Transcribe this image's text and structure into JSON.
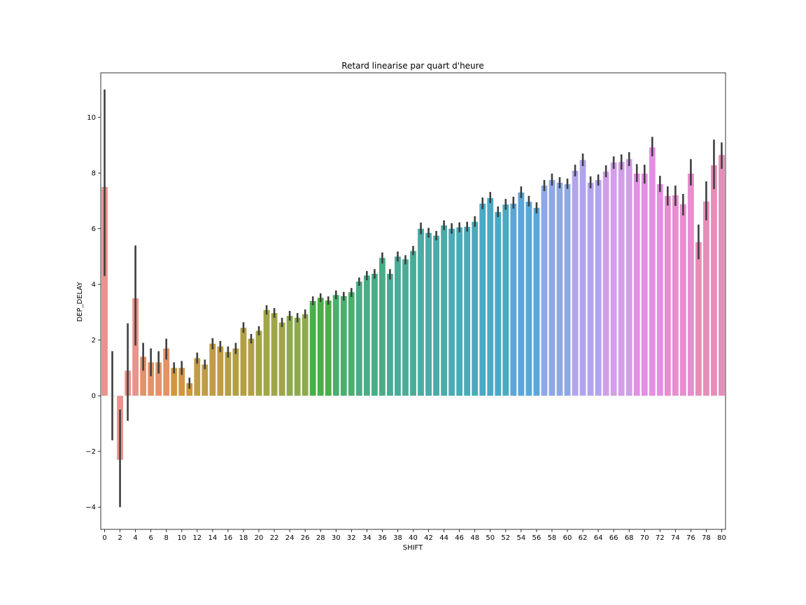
{
  "chart_data": {
    "type": "bar",
    "title": "Retard linearise par quart d'heure",
    "xlabel": "SHIFT",
    "ylabel": "DEP_DELAY",
    "ylim": [
      -4.8,
      11.6
    ],
    "yticks": [
      -4,
      -2,
      0,
      2,
      4,
      6,
      8,
      10
    ],
    "categories": [
      0,
      1,
      2,
      3,
      4,
      5,
      6,
      7,
      8,
      9,
      10,
      11,
      12,
      13,
      14,
      15,
      16,
      17,
      18,
      19,
      20,
      21,
      22,
      23,
      24,
      25,
      26,
      27,
      28,
      29,
      30,
      31,
      32,
      33,
      34,
      35,
      36,
      37,
      38,
      39,
      40,
      41,
      42,
      43,
      44,
      45,
      46,
      47,
      48,
      49,
      50,
      51,
      52,
      53,
      54,
      55,
      56,
      57,
      58,
      59,
      60,
      61,
      62,
      63,
      64,
      65,
      66,
      67,
      68,
      69,
      70,
      71,
      72,
      73,
      74,
      75,
      76,
      77,
      78,
      79,
      80
    ],
    "xtick_labels": [
      "0",
      "2",
      "4",
      "6",
      "8",
      "10",
      "12",
      "14",
      "16",
      "18",
      "20",
      "22",
      "24",
      "26",
      "28",
      "30",
      "32",
      "34",
      "36",
      "38",
      "40",
      "42",
      "44",
      "46",
      "48",
      "50",
      "52",
      "54",
      "56",
      "58",
      "60",
      "62",
      "64",
      "66",
      "68",
      "70",
      "72",
      "74",
      "76",
      "78",
      "80"
    ],
    "values": [
      7.5,
      0.0,
      -2.3,
      0.9,
      3.5,
      1.4,
      1.2,
      1.2,
      1.7,
      1.0,
      1.0,
      0.45,
      1.35,
      1.12,
      1.87,
      1.77,
      1.57,
      1.7,
      2.44,
      2.05,
      2.33,
      3.08,
      2.97,
      2.63,
      2.87,
      2.8,
      2.93,
      3.4,
      3.52,
      3.42,
      3.62,
      3.58,
      3.72,
      4.1,
      4.32,
      4.38,
      4.95,
      4.38,
      5.0,
      4.9,
      5.2,
      6.0,
      5.85,
      5.75,
      6.12,
      6.0,
      6.05,
      6.07,
      6.25,
      6.9,
      7.1,
      6.6,
      6.87,
      6.9,
      7.3,
      6.97,
      6.75,
      7.55,
      7.75,
      7.65,
      7.6,
      8.08,
      8.47,
      7.65,
      7.75,
      8.05,
      8.38,
      8.4,
      8.5,
      7.98,
      7.98,
      8.92,
      7.6,
      7.18,
      7.2,
      6.88,
      7.98,
      5.52,
      6.98,
      8.28,
      8.65
    ],
    "errors": [
      [
        4.3,
        11.0
      ],
      [
        -1.6,
        1.6
      ],
      [
        -4.0,
        -0.5
      ],
      [
        -0.9,
        2.6
      ],
      [
        1.8,
        5.4
      ],
      [
        0.9,
        1.9
      ],
      [
        0.7,
        1.7
      ],
      [
        0.8,
        1.6
      ],
      [
        1.3,
        2.05
      ],
      [
        0.8,
        1.2
      ],
      [
        0.75,
        1.25
      ],
      [
        0.25,
        0.65
      ],
      [
        1.15,
        1.55
      ],
      [
        0.95,
        1.3
      ],
      [
        1.67,
        2.07
      ],
      [
        1.57,
        1.97
      ],
      [
        1.37,
        1.77
      ],
      [
        1.5,
        1.9
      ],
      [
        2.26,
        2.64
      ],
      [
        1.88,
        2.22
      ],
      [
        2.17,
        2.5
      ],
      [
        2.92,
        3.25
      ],
      [
        2.8,
        3.15
      ],
      [
        2.47,
        2.8
      ],
      [
        2.7,
        3.05
      ],
      [
        2.63,
        2.97
      ],
      [
        2.78,
        3.1
      ],
      [
        3.25,
        3.57
      ],
      [
        3.37,
        3.68
      ],
      [
        3.27,
        3.57
      ],
      [
        3.47,
        3.78
      ],
      [
        3.42,
        3.73
      ],
      [
        3.55,
        3.87
      ],
      [
        3.95,
        4.25
      ],
      [
        4.15,
        4.48
      ],
      [
        4.2,
        4.55
      ],
      [
        4.75,
        5.15
      ],
      [
        4.18,
        4.55
      ],
      [
        4.82,
        5.18
      ],
      [
        4.72,
        5.05
      ],
      [
        5.05,
        5.38
      ],
      [
        5.8,
        6.22
      ],
      [
        5.68,
        6.03
      ],
      [
        5.58,
        5.92
      ],
      [
        5.95,
        6.3
      ],
      [
        5.82,
        6.2
      ],
      [
        5.87,
        6.23
      ],
      [
        5.9,
        6.25
      ],
      [
        6.07,
        6.45
      ],
      [
        6.7,
        7.12
      ],
      [
        6.92,
        7.32
      ],
      [
        6.42,
        6.8
      ],
      [
        6.68,
        7.07
      ],
      [
        6.72,
        7.15
      ],
      [
        7.1,
        7.52
      ],
      [
        6.8,
        7.18
      ],
      [
        6.55,
        6.95
      ],
      [
        7.35,
        7.75
      ],
      [
        7.55,
        7.98
      ],
      [
        7.45,
        7.85
      ],
      [
        7.43,
        7.8
      ],
      [
        7.88,
        8.3
      ],
      [
        8.25,
        8.7
      ],
      [
        7.45,
        7.88
      ],
      [
        7.55,
        7.95
      ],
      [
        7.85,
        8.28
      ],
      [
        8.15,
        8.6
      ],
      [
        8.12,
        8.67
      ],
      [
        8.25,
        8.75
      ],
      [
        7.68,
        8.32
      ],
      [
        7.62,
        8.3
      ],
      [
        8.6,
        9.3
      ],
      [
        7.32,
        7.9
      ],
      [
        6.83,
        7.52
      ],
      [
        6.82,
        7.55
      ],
      [
        6.48,
        7.25
      ],
      [
        7.55,
        8.5
      ],
      [
        4.9,
        6.15
      ],
      [
        6.3,
        7.7
      ],
      [
        7.42,
        9.2
      ],
      [
        8.15,
        9.1
      ]
    ],
    "colors": [
      "#e8948c",
      "#e8948c",
      "#e8948c",
      "#e8948c",
      "#e8948c",
      "#e3926a",
      "#e3926a",
      "#e3926a",
      "#e3926a",
      "#d19640",
      "#d19640",
      "#d19640",
      "#c09c44",
      "#c09c44",
      "#c09c44",
      "#c09c44",
      "#b3a046",
      "#b3a046",
      "#b3a046",
      "#b3a046",
      "#a0a548",
      "#a0a548",
      "#a0a548",
      "#a0a548",
      "#8dab4a",
      "#8dab4a",
      "#8dab4a",
      "#4aaf4a",
      "#4aaf4a",
      "#4aaf4a",
      "#4aae6e",
      "#4aae6e",
      "#4aae6e",
      "#4aad86",
      "#4aad86",
      "#4aad86",
      "#4aad86",
      "#4aac98",
      "#4aac98",
      "#4aac98",
      "#4aac98",
      "#4aaca8",
      "#4aaca8",
      "#4aaca8",
      "#4aaca8",
      "#4aabb6",
      "#4aabb6",
      "#4aabb6",
      "#4aabb6",
      "#4aa9c6",
      "#4aa9c6",
      "#4aa9c6",
      "#4aa9c6",
      "#5aa6d8",
      "#5aa6d8",
      "#5aa6d8",
      "#5aa6d8",
      "#8ea8e6",
      "#8ea8e6",
      "#8ea8e6",
      "#8ea8e6",
      "#b2a4ec",
      "#b2a4ec",
      "#b2a4ec",
      "#b2a4ec",
      "#d29ee8",
      "#d29ee8",
      "#d29ee8",
      "#d29ee8",
      "#e48ee4",
      "#e48ee4",
      "#e48ee4",
      "#e48ee4",
      "#e68ed0",
      "#e68ed0",
      "#e68ed0",
      "#e68ed0",
      "#e78eb8",
      "#e78eb8",
      "#e78eb8",
      "#e78eb8"
    ],
    "error_color": "#3f3f3f",
    "grid": false,
    "legend": "none"
  }
}
